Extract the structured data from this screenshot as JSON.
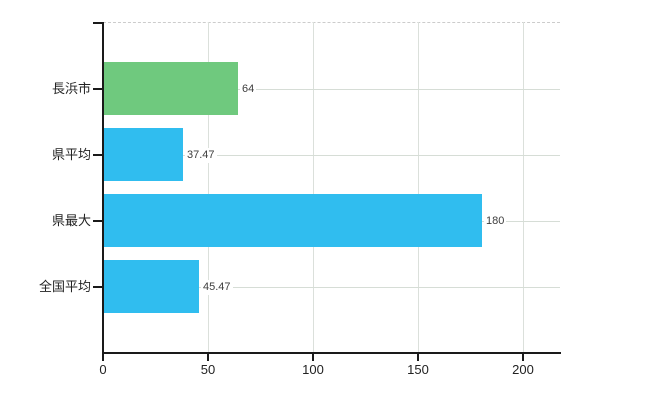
{
  "chart_data": {
    "type": "bar",
    "orientation": "horizontal",
    "title": "",
    "xlabel": "",
    "ylabel": "",
    "legend": "none",
    "grid": true,
    "categories": [
      "長浜市",
      "県平均",
      "県最大",
      "全国平均"
    ],
    "values": [
      64,
      37.47,
      180,
      45.47
    ],
    "value_labels": [
      "64",
      "37.47",
      "180",
      "45.47"
    ],
    "bar_colors": [
      "#6fc97e",
      "#30bdef",
      "#30bdef",
      "#30bdef"
    ],
    "x_tick_labels": [
      "0",
      "50",
      "100",
      "150",
      "200"
    ],
    "x_tick_values": [
      0,
      50,
      100,
      150,
      200
    ],
    "xlim": [
      0,
      217.6
    ],
    "colors": {
      "bar_green": "#6fc97e",
      "bar_blue": "#30bdef",
      "grid_line": "#d6ddd6",
      "vertical_grid_line": "#dbe0db",
      "top_border": "#cccccc",
      "axis_line": "#1a1a1a",
      "category_text": "#222222",
      "tick_text": "#222222",
      "value_text": "#3d3d3d",
      "background": "#ffffff"
    }
  }
}
